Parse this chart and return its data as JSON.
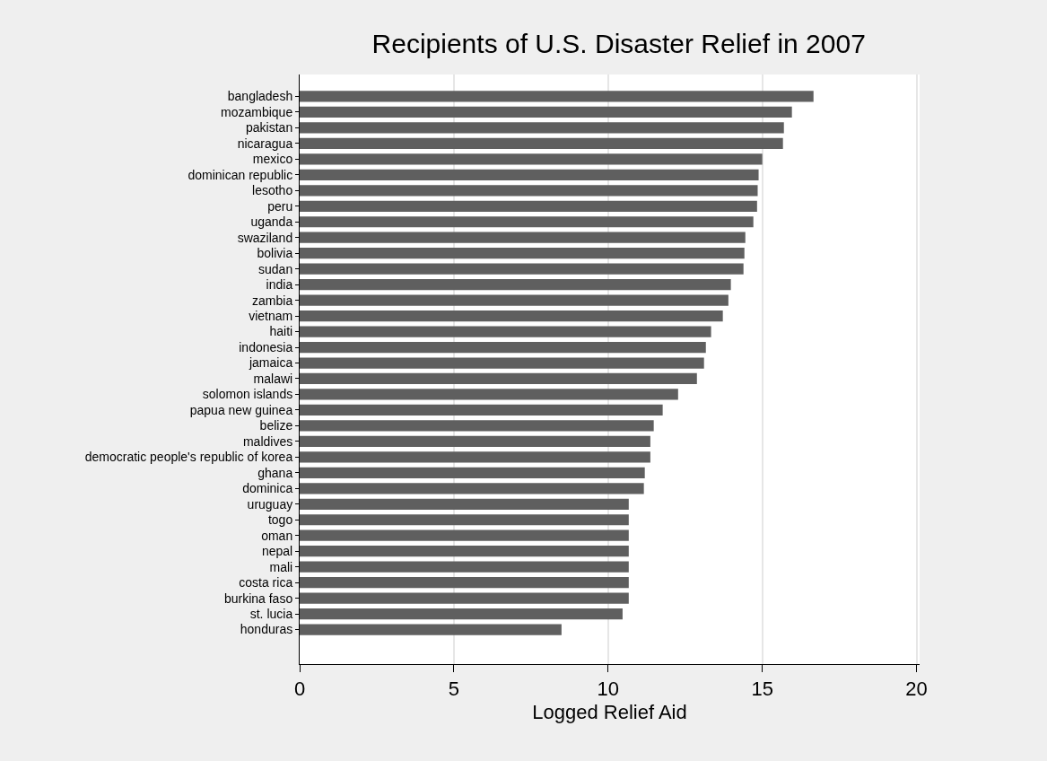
{
  "chart_data": {
    "type": "bar",
    "orientation": "horizontal",
    "title": "Recipients of U.S. Disaster Relief in 2007",
    "xlabel": "Logged Relief Aid",
    "categories": [
      "bangladesh",
      "mozambique",
      "pakistan",
      "nicaragua",
      "mexico",
      "dominican republic",
      "lesotho",
      "peru",
      "uganda",
      "swaziland",
      "bolivia",
      "sudan",
      "india",
      "zambia",
      "vietnam",
      "haiti",
      "indonesia",
      "jamaica",
      "malawi",
      "solomon islands",
      "papua new guinea",
      "belize",
      "maldives",
      "democratic people's republic of korea",
      "ghana",
      "dominica",
      "uruguay",
      "togo",
      "oman",
      "nepal",
      "mali",
      "costa rica",
      "burkina faso",
      "st. lucia",
      "honduras"
    ],
    "values": [
      16.66,
      15.96,
      15.7,
      15.67,
      15.0,
      14.88,
      14.85,
      14.83,
      14.71,
      14.45,
      14.42,
      14.39,
      13.98,
      13.9,
      13.72,
      13.34,
      13.17,
      13.11,
      12.88,
      12.27,
      11.77,
      11.48,
      11.37,
      11.37,
      11.19,
      11.16,
      10.67,
      10.67,
      10.67,
      10.67,
      10.67,
      10.67,
      10.67,
      10.47,
      8.49
    ],
    "color": "#5f5f5f",
    "xlim": [
      0,
      20.1
    ],
    "xticks": [
      0,
      5,
      10,
      15,
      20
    ],
    "grid": "x",
    "legend": false
  }
}
